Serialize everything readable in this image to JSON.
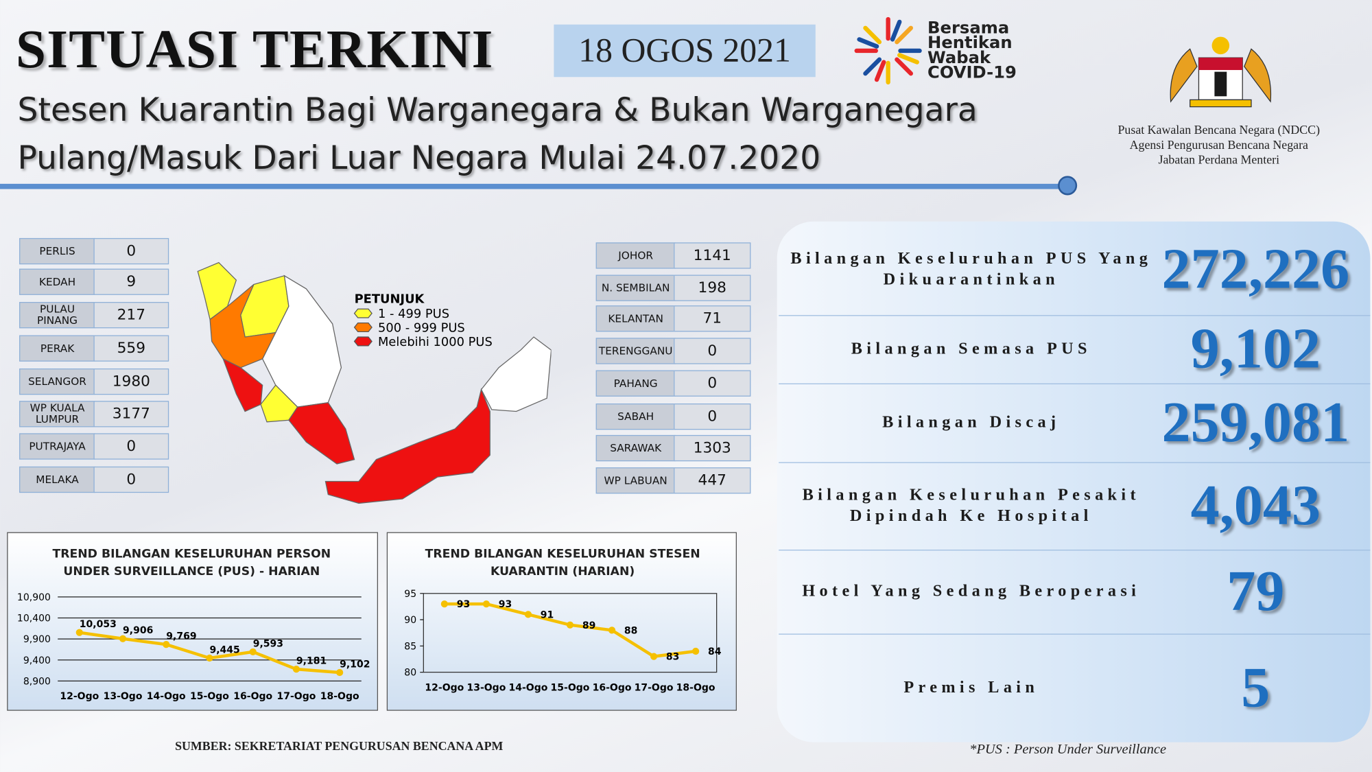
{
  "header": {
    "title": "SITUASI TERKINI",
    "date": "18 OGOS 2021",
    "subtitle_lines": [
      "Stesen Kuarantin Bagi Warganegara & Bukan Warganegara",
      "Pulang/Masuk Dari Luar Negara Mulai 24.07.2020"
    ],
    "logo_lines": [
      "Bersama",
      "Hentikan",
      "Wabak",
      "COVID-19"
    ],
    "agency_lines": [
      "Pusat Kawalan Bencana Negara (NDCC)",
      "Agensi Pengurusan Bencana Negara",
      "Jabatan Perdana Menteri"
    ]
  },
  "states_left": [
    {
      "name": "PERLIS",
      "value": 0
    },
    {
      "name": "KEDAH",
      "value": 9
    },
    {
      "name": "PULAU PINANG",
      "value": 217
    },
    {
      "name": "PERAK",
      "value": 559
    },
    {
      "name": "SELANGOR",
      "value": 1980
    },
    {
      "name": "WP KUALA LUMPUR",
      "value": 3177
    },
    {
      "name": "PUTRAJAYA",
      "value": 0
    },
    {
      "name": "MELAKA",
      "value": 0
    }
  ],
  "states_right": [
    {
      "name": "JOHOR",
      "value": 1141
    },
    {
      "name": "N. SEMBILAN",
      "value": 198
    },
    {
      "name": "KELANTAN",
      "value": 71
    },
    {
      "name": "TERENGGANU",
      "value": 0
    },
    {
      "name": "PAHANG",
      "value": 0
    },
    {
      "name": "SABAH",
      "value": 0
    },
    {
      "name": "SARAWAK",
      "value": 1303
    },
    {
      "name": "WP LABUAN",
      "value": 447
    }
  ],
  "legend": {
    "title": "PETUNJUK",
    "items": [
      {
        "label": "1 - 499 PUS",
        "color": "#ffff33"
      },
      {
        "label": "500 - 999 PUS",
        "color": "#ff7a00"
      },
      {
        "label": "Melebihi 1000 PUS",
        "color": "#ee1111"
      }
    ]
  },
  "stats": [
    {
      "label": "Bilangan Keseluruhan PUS Yang Dikuarantinkan",
      "value": "272,226"
    },
    {
      "label": "Bilangan Semasa PUS",
      "value": "9,102"
    },
    {
      "label": "Bilangan Discaj",
      "value": "259,081"
    },
    {
      "label": "Bilangan Keseluruhan Pesakit Dipindah Ke Hospital",
      "value": "4,043"
    },
    {
      "label": "Hotel Yang Sedang Beroperasi",
      "value": "79"
    },
    {
      "label": "Premis Lain",
      "value": "5"
    }
  ],
  "chart_data": [
    {
      "type": "line",
      "title": "TREND BILANGAN KESELURUHAN PERSON UNDER SURVEILLANCE (PUS) - HARIAN",
      "categories": [
        "12-Ogo",
        "13-Ogo",
        "14-Ogo",
        "15-Ogo",
        "16-Ogo",
        "17-Ogo",
        "18-Ogo"
      ],
      "values": [
        10053,
        9906,
        9769,
        9445,
        9593,
        9181,
        9102
      ],
      "value_labels": [
        "10,053",
        "9,906",
        "9,769",
        "9,445",
        "9,593",
        "9,181",
        "9,102"
      ],
      "color": "#f5c000",
      "ylim": [
        8900,
        10900
      ],
      "yticks": [
        {
          "value": 8900,
          "label": "8,900"
        },
        {
          "value": 9400,
          "label": "9,400"
        },
        {
          "value": 9900,
          "label": "9,900"
        },
        {
          "value": 10400,
          "label": "10,400"
        },
        {
          "value": 10900,
          "label": "10,900"
        }
      ],
      "grid": true
    },
    {
      "type": "line",
      "title": "TREND BILANGAN KESELURUHAN STESEN KUARANTIN (HARIAN)",
      "categories": [
        "12-Ogo",
        "13-Ogo",
        "14-Ogo",
        "15-Ogo",
        "16-Ogo",
        "17-Ogo",
        "18-Ogo"
      ],
      "values": [
        93,
        93,
        91,
        89,
        88,
        83,
        84
      ],
      "color": "#f5c000",
      "ylim": [
        80,
        95
      ],
      "yticks": [
        80,
        85,
        90,
        95
      ],
      "grid": false
    }
  ],
  "footer": {
    "source": "SUMBER: SEKRETARIAT PENGURUSAN BENCANA APM",
    "note": "*PUS : Person Under Surveillance"
  }
}
